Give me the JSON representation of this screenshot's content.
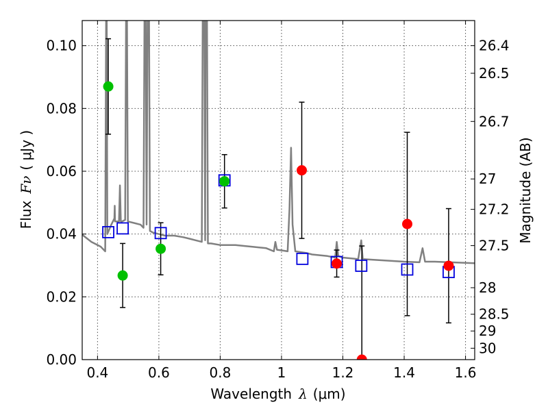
{
  "chart_data": {
    "type": "scatter",
    "title": "",
    "xlabel_main": "Wavelength",
    "xlabel_symbol": "λ",
    "xlabel_unit": "(μm)",
    "ylabel_main": "Flux",
    "ylabel_symbol": "Fν",
    "ylabel_unit": "( μJy )",
    "y2label": "Magnitude (AB)",
    "xlim": [
      0.35,
      1.63
    ],
    "ylim": [
      0.0,
      0.108
    ],
    "grid": true,
    "x_ticks": [
      {
        "value": 0.4,
        "label": "0.4"
      },
      {
        "value": 0.6,
        "label": "0.6"
      },
      {
        "value": 0.8,
        "label": "0.8"
      },
      {
        "value": 1.0,
        "label": "1"
      },
      {
        "value": 1.2,
        "label": "1.2"
      },
      {
        "value": 1.4,
        "label": "1.4"
      },
      {
        "value": 1.6,
        "label": "1.6"
      }
    ],
    "y_ticks": [
      {
        "value": 0.0,
        "label": "0.00"
      },
      {
        "value": 0.02,
        "label": "0.02"
      },
      {
        "value": 0.04,
        "label": "0.04"
      },
      {
        "value": 0.06,
        "label": "0.06"
      },
      {
        "value": 0.08,
        "label": "0.08"
      },
      {
        "value": 0.1,
        "label": "0.10"
      }
    ],
    "y2_ticks": [
      {
        "value": 26.4,
        "label": "26.4"
      },
      {
        "value": 26.5,
        "label": "26.5"
      },
      {
        "value": 26.7,
        "label": "26.7"
      },
      {
        "value": 27.0,
        "label": "27"
      },
      {
        "value": 27.2,
        "label": "27.2"
      },
      {
        "value": 27.5,
        "label": "27.5"
      },
      {
        "value": 28.0,
        "label": "28"
      },
      {
        "value": 28.5,
        "label": "28.5"
      },
      {
        "value": 29.0,
        "label": "29"
      },
      {
        "value": 30.0,
        "label": "30"
      }
    ],
    "colors": {
      "observed_green": "#00c000",
      "observed_red": "#ff0000",
      "model": "#0000dd",
      "spectrum": "#808080",
      "errorbar": "#000000"
    },
    "observed_points": [
      {
        "x": 0.435,
        "y": 0.087,
        "yerr_lo": 0.0152,
        "yerr_hi": 0.0152,
        "color": "green"
      },
      {
        "x": 0.482,
        "y": 0.0268,
        "yerr_lo": 0.0102,
        "yerr_hi": 0.0102,
        "color": "green"
      },
      {
        "x": 0.606,
        "y": 0.0353,
        "yerr_lo": 0.0083,
        "yerr_hi": 0.0083,
        "color": "green"
      },
      {
        "x": 0.814,
        "y": 0.0568,
        "yerr_lo": 0.0085,
        "yerr_hi": 0.0085,
        "color": "green"
      },
      {
        "x": 1.066,
        "y": 0.0603,
        "yerr_lo": 0.0217,
        "yerr_hi": 0.0217,
        "color": "red"
      },
      {
        "x": 1.18,
        "y": 0.0306,
        "yerr_lo": 0.0043,
        "yerr_hi": 0.0043,
        "color": "red"
      },
      {
        "x": 1.262,
        "y": 0.0,
        "yerr_lo": 0.0,
        "yerr_hi": 0.0362,
        "color": "red"
      },
      {
        "x": 1.41,
        "y": 0.0432,
        "yerr_lo": 0.0292,
        "yerr_hi": 0.0292,
        "color": "red"
      },
      {
        "x": 1.545,
        "y": 0.0299,
        "yerr_lo": 0.0182,
        "yerr_hi": 0.0182,
        "color": "red"
      }
    ],
    "model_points": [
      {
        "x": 0.435,
        "y": 0.0406
      },
      {
        "x": 0.482,
        "y": 0.0418
      },
      {
        "x": 0.606,
        "y": 0.0403
      },
      {
        "x": 0.814,
        "y": 0.0571
      },
      {
        "x": 1.068,
        "y": 0.0321
      },
      {
        "x": 1.18,
        "y": 0.0311
      },
      {
        "x": 1.26,
        "y": 0.0299
      },
      {
        "x": 1.41,
        "y": 0.0287
      },
      {
        "x": 1.545,
        "y": 0.0279
      }
    ],
    "spectrum": [
      [
        0.35,
        0.0398
      ],
      [
        0.38,
        0.0375
      ],
      [
        0.41,
        0.036
      ],
      [
        0.425,
        0.0345
      ],
      [
        0.428,
        0.108
      ],
      [
        0.43,
        0.108
      ],
      [
        0.432,
        0.04
      ],
      [
        0.445,
        0.043
      ],
      [
        0.455,
        0.045
      ],
      [
        0.456,
        0.049
      ],
      [
        0.457,
        0.044
      ],
      [
        0.47,
        0.044
      ],
      [
        0.473,
        0.0555
      ],
      [
        0.476,
        0.044
      ],
      [
        0.48,
        0.044
      ],
      [
        0.49,
        0.0445
      ],
      [
        0.493,
        0.108
      ],
      [
        0.496,
        0.108
      ],
      [
        0.499,
        0.044
      ],
      [
        0.52,
        0.0435
      ],
      [
        0.54,
        0.043
      ],
      [
        0.55,
        0.042
      ],
      [
        0.553,
        0.108
      ],
      [
        0.557,
        0.108
      ],
      [
        0.56,
        0.043
      ],
      [
        0.563,
        0.108
      ],
      [
        0.568,
        0.108
      ],
      [
        0.571,
        0.041
      ],
      [
        0.58,
        0.0405
      ],
      [
        0.6,
        0.04
      ],
      [
        0.62,
        0.0395
      ],
      [
        0.65,
        0.0395
      ],
      [
        0.68,
        0.039
      ],
      [
        0.7,
        0.0385
      ],
      [
        0.72,
        0.038
      ],
      [
        0.74,
        0.0375
      ],
      [
        0.743,
        0.108
      ],
      [
        0.748,
        0.108
      ],
      [
        0.751,
        0.038
      ],
      [
        0.752,
        0.108
      ],
      [
        0.757,
        0.108
      ],
      [
        0.76,
        0.037
      ],
      [
        0.77,
        0.037
      ],
      [
        0.8,
        0.0365
      ],
      [
        0.85,
        0.0365
      ],
      [
        0.88,
        0.0362
      ],
      [
        0.9,
        0.036
      ],
      [
        0.95,
        0.0355
      ],
      [
        0.975,
        0.0345
      ],
      [
        0.98,
        0.0375
      ],
      [
        0.985,
        0.035
      ],
      [
        1.0,
        0.0348
      ],
      [
        1.02,
        0.0345
      ],
      [
        1.026,
        0.048
      ],
      [
        1.031,
        0.0675
      ],
      [
        1.036,
        0.043
      ],
      [
        1.045,
        0.0345
      ],
      [
        1.08,
        0.034
      ],
      [
        1.1,
        0.0335
      ],
      [
        1.15,
        0.033
      ],
      [
        1.175,
        0.0325
      ],
      [
        1.18,
        0.0375
      ],
      [
        1.185,
        0.033
      ],
      [
        1.2,
        0.0325
      ],
      [
        1.25,
        0.032
      ],
      [
        1.26,
        0.038
      ],
      [
        1.265,
        0.032
      ],
      [
        1.3,
        0.0318
      ],
      [
        1.35,
        0.0315
      ],
      [
        1.4,
        0.0312
      ],
      [
        1.45,
        0.031
      ],
      [
        1.46,
        0.0355
      ],
      [
        1.468,
        0.0312
      ],
      [
        1.5,
        0.0312
      ],
      [
        1.55,
        0.031
      ],
      [
        1.6,
        0.0308
      ],
      [
        1.63,
        0.0307
      ]
    ]
  }
}
